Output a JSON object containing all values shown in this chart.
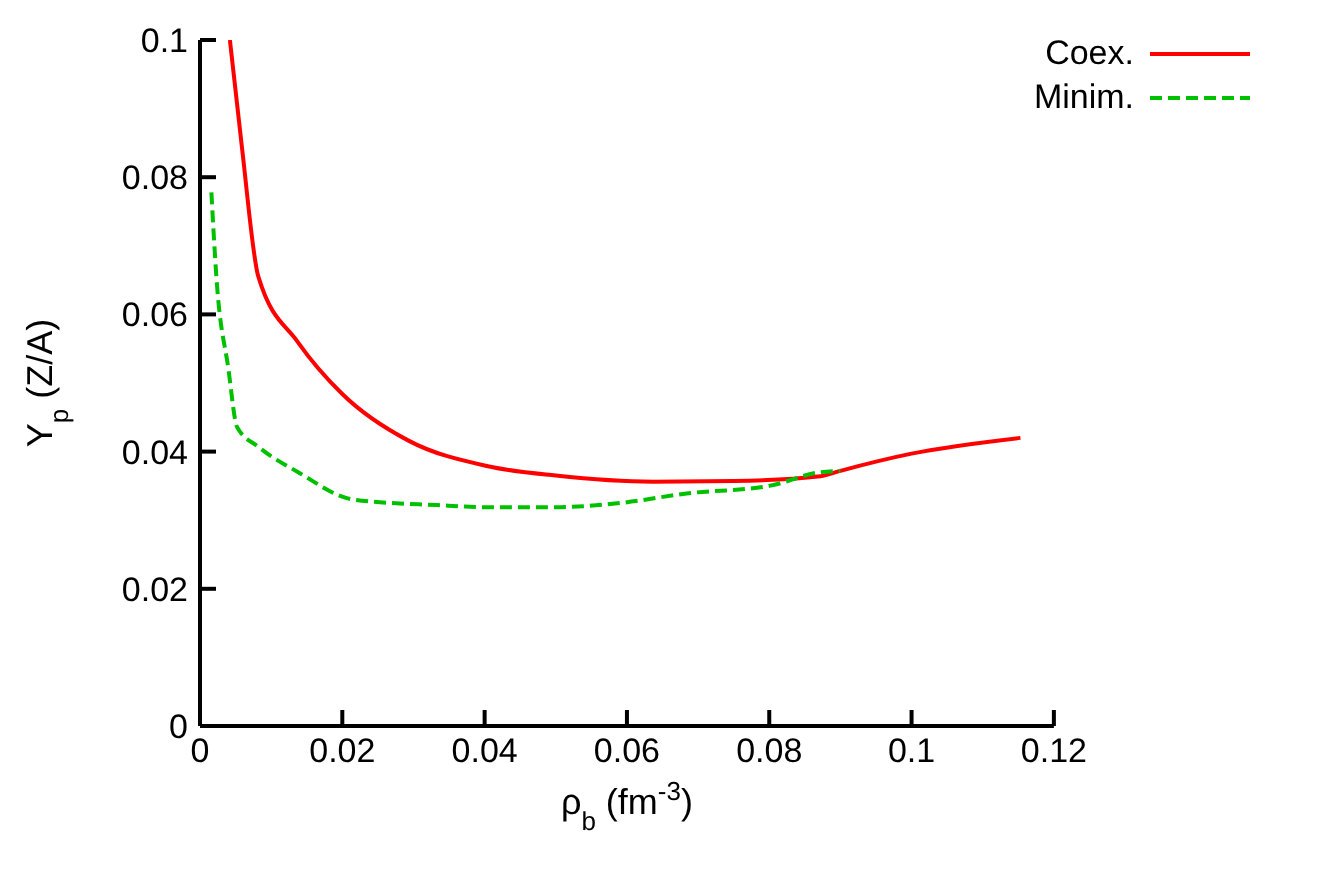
{
  "chart_data": {
    "type": "line",
    "xlabel": "ρ$_{b}$ (fm$^{-3}$)",
    "ylabel": "Y$_{p}$ (Z/A)",
    "xlim": [
      0,
      0.12
    ],
    "xticks": [
      0,
      0.02,
      0.04,
      0.06,
      0.08,
      0.1,
      0.12
    ],
    "ylim": [
      0,
      0.1
    ],
    "yticks": [
      0,
      0.02,
      0.04,
      0.06,
      0.08,
      0.1
    ],
    "grid": false,
    "legend": "top right",
    "marker": "none",
    "series": [
      {
        "name": "Coex.",
        "color": "#ff0000",
        "line_style": "solid",
        "x": [
          0.0042,
          0.0059,
          0.0082,
          0.0138,
          0.02,
          0.0293,
          0.0403,
          0.05,
          0.0637,
          0.075,
          0.0872,
          0.09,
          0.1,
          0.1153
        ],
        "values": [
          0.1,
          0.0843,
          0.0655,
          0.0559,
          0.0484,
          0.0416,
          0.0379,
          0.0365,
          0.0356,
          0.0357,
          0.0364,
          0.0372,
          0.0397,
          0.042
        ]
      },
      {
        "name": "Minim.",
        "color": "#00c000",
        "line_style": "dashed",
        "x": [
          0.0016,
          0.0023,
          0.004,
          0.0052,
          0.0082,
          0.0138,
          0.0216,
          0.0333,
          0.0403,
          0.0497,
          0.059,
          0.0684,
          0.08,
          0.0872,
          0.09
        ],
        "values": [
          0.0778,
          0.0655,
          0.052,
          0.0436,
          0.0407,
          0.037,
          0.033,
          0.0322,
          0.0319,
          0.0319,
          0.0325,
          0.0339,
          0.035,
          0.037,
          0.0372
        ]
      }
    ]
  }
}
